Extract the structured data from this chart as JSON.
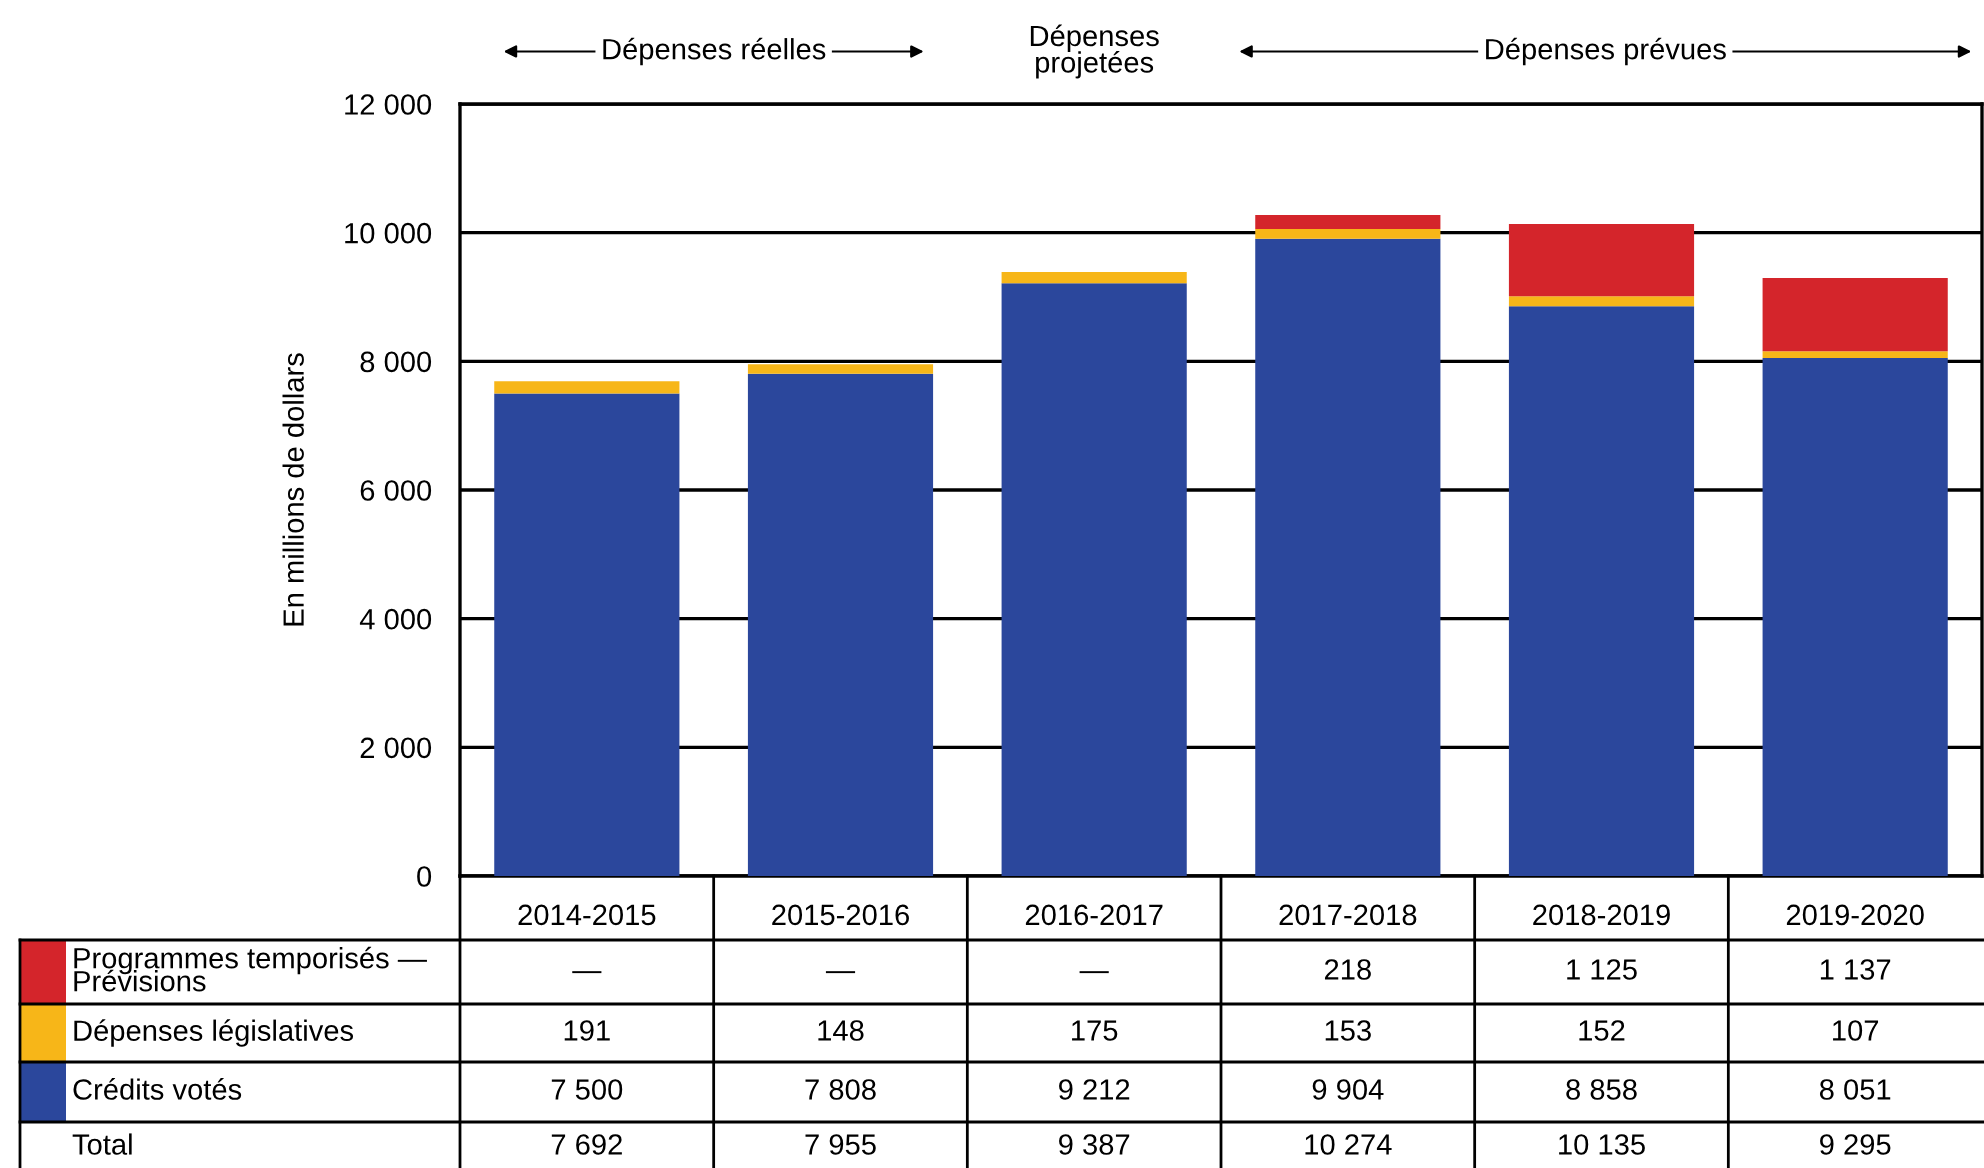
{
  "chart_data": {
    "type": "bar",
    "stacked": true,
    "categories": [
      "2014-2015",
      "2015-2016",
      "2016-2017",
      "2017-2018",
      "2018-2019",
      "2019-2020"
    ],
    "series": [
      {
        "name": "Crédits votés",
        "color": "#2b479c",
        "values": [
          7500,
          7808,
          9212,
          9904,
          8858,
          8051
        ],
        "value_labels": [
          "7 500",
          "7 808",
          "9 212",
          "9 904",
          "8 858",
          "8 051"
        ]
      },
      {
        "name": "Dépenses législatives",
        "color": "#f7b618",
        "values": [
          191,
          148,
          175,
          153,
          152,
          107
        ],
        "value_labels": [
          "191",
          "148",
          "175",
          "153",
          "152",
          "107"
        ]
      },
      {
        "name": "Programmes temporisés —\nPrévisions",
        "color": "#d4252b",
        "values": [
          null,
          null,
          null,
          218,
          1125,
          1137
        ],
        "value_labels": [
          "—",
          "—",
          "—",
          "218",
          "1 125",
          "1 137"
        ]
      }
    ],
    "ylabel": "En millions de dollars",
    "ylim": [
      0,
      12000
    ],
    "yticks": [
      0,
      {
        "value": 2000,
        "label": "2 000"
      },
      {
        "value": 4000,
        "label": "4 000"
      },
      {
        "value": 6000,
        "label": "6 000"
      },
      {
        "value": 8000,
        "label": "8 000"
      },
      {
        "value": 10000,
        "label": "10 000"
      },
      {
        "value": 12000,
        "label": "12 000"
      }
    ],
    "grid": "y",
    "legend": "bottom left",
    "annotations": [
      "Dépenses réelles",
      "Dépenses\nprojetées",
      "Dépenses prévues",
      "Total",
      "7 692",
      "7 955",
      "9 387",
      "10 274",
      "10 135",
      "9 295"
    ]
  }
}
